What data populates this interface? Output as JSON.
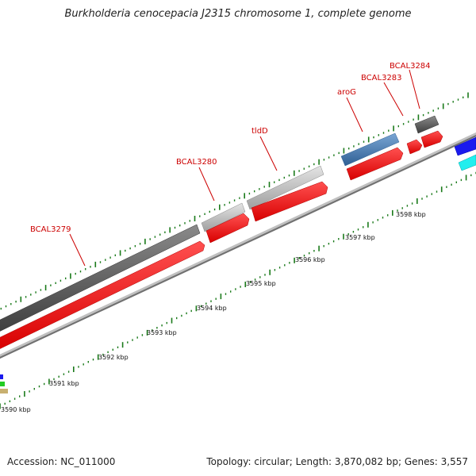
{
  "title": "Burkholderia cenocepacia J2315 chromosome 1, complete genome",
  "footer": {
    "accession": "Accession: NC_011000",
    "summary": "Topology: circular; Length: 3,870,082 bp; Genes: 3,557"
  },
  "colors": {
    "tick": "#1a7a1a",
    "cds": "#ff0000",
    "gene_dark": "#5a5a5a",
    "gene_light": "#c8c8c8",
    "gene_blue": "#4a80b8",
    "backbone": "#888888",
    "label": "#cc0000"
  },
  "scale_labels": [
    "3590 kbp",
    "3591 kbp",
    "3592 kbp",
    "3593 kbp",
    "3594 kbp",
    "3595 kbp",
    "3596 kbp",
    "3597 kbp",
    "3598 kbp"
  ],
  "gene_labels": [
    "BCAL3279",
    "BCAL3280",
    "tldD",
    "aroG",
    "BCAL3283",
    "BCAL3284"
  ]
}
